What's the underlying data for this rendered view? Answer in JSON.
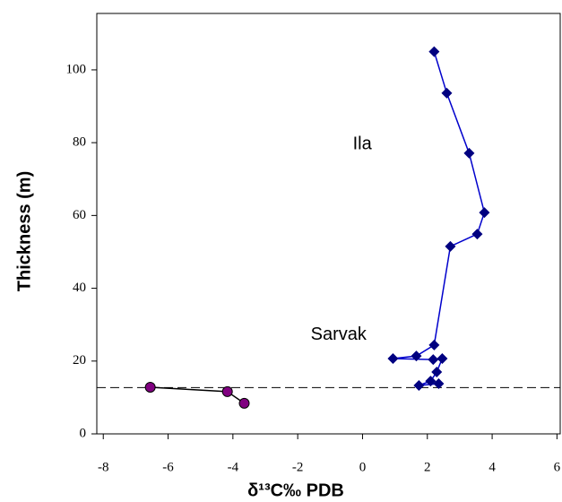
{
  "chart_data": {
    "type": "scatter",
    "xlabel": "δ¹³C‰ PDB",
    "ylabel": "Thickness (m)",
    "xlim": [
      -8.2,
      6.1
    ],
    "xticks": [
      -8,
      -6,
      -4,
      -2,
      0,
      2,
      4,
      6
    ],
    "ylim": [
      0,
      115.5
    ],
    "yticks": [
      0,
      20,
      40,
      60,
      80,
      100
    ],
    "series": [
      {
        "color": "#000080",
        "line_color": "#0000cc",
        "marker": "diamond",
        "x": [
          2.21,
          2.6,
          3.29,
          3.76,
          3.54,
          2.71,
          2.21,
          1.66,
          0.94,
          2.18,
          2.46,
          2.29,
          2.1,
          1.74,
          2.35
        ],
        "values": [
          105,
          93.6,
          77.1,
          60.8,
          54.9,
          51.5,
          24.4,
          21.4,
          20.7,
          20.4,
          20.7,
          17,
          14.5,
          13.3,
          13.8
        ]
      },
      {
        "color": "#800080",
        "line_color": "#000000",
        "marker": "circle",
        "x": [
          -6.55,
          -4.17,
          -3.65
        ],
        "values": [
          12.8,
          11.6,
          8.4
        ]
      }
    ],
    "hlines": [
      {
        "y": 12.7,
        "style": "dashed"
      }
    ],
    "annotations": [
      {
        "text": "Ila",
        "x": -0.3,
        "y": 79.5
      },
      {
        "text": "Sarvak",
        "x": -1.6,
        "y": 27.2
      }
    ]
  }
}
